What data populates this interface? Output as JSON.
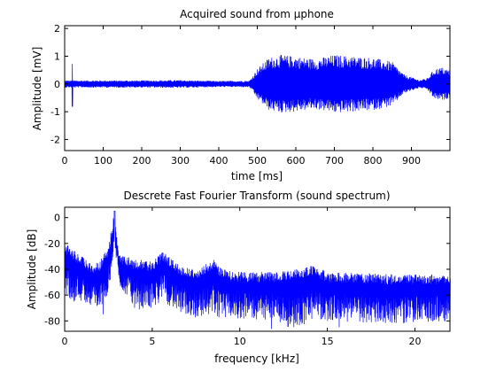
{
  "chart_data": [
    {
      "type": "line",
      "title": "Acquired sound from µphone",
      "xlabel": "time [ms]",
      "ylabel": "Amplitude [mV]",
      "xlim": [
        0,
        1000
      ],
      "ylim": [
        -2.4,
        2.1
      ],
      "xticks": [
        "0",
        "100",
        "200",
        "300",
        "400",
        "500",
        "600",
        "700",
        "800",
        "900"
      ],
      "yticks": [
        "2",
        "1",
        "0",
        "-1",
        "-2"
      ],
      "color": "#0000ff",
      "grid": false,
      "series": [
        {
          "spike": {
            "x": 20,
            "max": 0.72,
            "min": -0.82
          },
          "envelope": [
            {
              "x": 0,
              "amp": 0.13
            },
            {
              "x": 100,
              "amp": 0.13
            },
            {
              "x": 200,
              "amp": 0.13
            },
            {
              "x": 300,
              "amp": 0.14
            },
            {
              "x": 400,
              "amp": 0.11
            },
            {
              "x": 480,
              "amp": 0.12
            },
            {
              "x": 500,
              "amp": 0.55
            },
            {
              "x": 530,
              "amp": 0.95
            },
            {
              "x": 560,
              "amp": 1.05
            },
            {
              "x": 600,
              "amp": 1.0
            },
            {
              "x": 650,
              "amp": 0.9
            },
            {
              "x": 700,
              "amp": 1.05
            },
            {
              "x": 750,
              "amp": 1.0
            },
            {
              "x": 800,
              "amp": 0.95
            },
            {
              "x": 850,
              "amp": 0.8
            },
            {
              "x": 880,
              "amp": 0.35
            },
            {
              "x": 920,
              "amp": 0.15
            },
            {
              "x": 940,
              "amp": 0.2
            },
            {
              "x": 960,
              "amp": 0.55
            },
            {
              "x": 980,
              "amp": 0.6
            },
            {
              "x": 1000,
              "amp": 0.5
            }
          ]
        }
      ]
    },
    {
      "type": "line",
      "title": "Descrete Fast Fourier Transform (sound spectrum)",
      "xlabel": "frequency [kHz]",
      "ylabel": "Amplitude [dB]",
      "xlim": [
        0,
        22
      ],
      "ylim": [
        -88,
        8
      ],
      "xticks": [
        "0",
        "5",
        "10",
        "15",
        "20"
      ],
      "yticks": [
        "0",
        "-20",
        "-40",
        "-60",
        "-80"
      ],
      "color": "#0000ff",
      "grid": false,
      "series": [
        {
          "peak": {
            "x": 2.85,
            "value": 5
          },
          "envelope": [
            {
              "x": 0.05,
              "top": -20,
              "bottom": -62
            },
            {
              "x": 0.5,
              "top": -25,
              "bottom": -65
            },
            {
              "x": 1.0,
              "top": -30,
              "bottom": -65
            },
            {
              "x": 1.5,
              "top": -36,
              "bottom": -68
            },
            {
              "x": 2.0,
              "top": -34,
              "bottom": -72
            },
            {
              "x": 2.5,
              "top": -22,
              "bottom": -60
            },
            {
              "x": 2.85,
              "top": 5,
              "bottom": -20
            },
            {
              "x": 3.1,
              "top": -28,
              "bottom": -55
            },
            {
              "x": 3.5,
              "top": -30,
              "bottom": -60
            },
            {
              "x": 4.0,
              "top": -32,
              "bottom": -70
            },
            {
              "x": 5.0,
              "top": -34,
              "bottom": -70
            },
            {
              "x": 5.6,
              "top": -26,
              "bottom": -64
            },
            {
              "x": 6.5,
              "top": -36,
              "bottom": -74
            },
            {
              "x": 7.5,
              "top": -40,
              "bottom": -78
            },
            {
              "x": 8.5,
              "top": -32,
              "bottom": -74
            },
            {
              "x": 9.0,
              "top": -40,
              "bottom": -80
            },
            {
              "x": 10.0,
              "top": -42,
              "bottom": -78
            },
            {
              "x": 12.0,
              "top": -42,
              "bottom": -80
            },
            {
              "x": 13.0,
              "top": -40,
              "bottom": -86
            },
            {
              "x": 14.2,
              "top": -37,
              "bottom": -80
            },
            {
              "x": 15.0,
              "top": -42,
              "bottom": -80
            },
            {
              "x": 17.0,
              "top": -43,
              "bottom": -82
            },
            {
              "x": 19.0,
              "top": -44,
              "bottom": -82
            },
            {
              "x": 22.0,
              "top": -44,
              "bottom": -80
            }
          ]
        }
      ]
    }
  ]
}
